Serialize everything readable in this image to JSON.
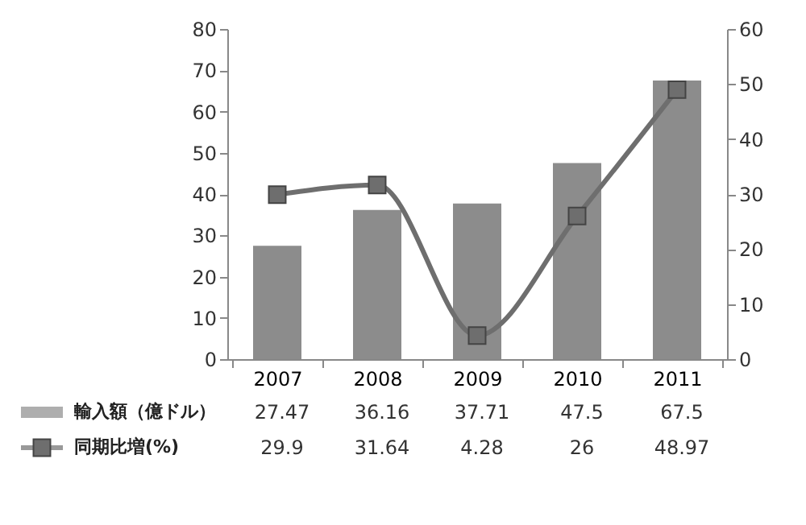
{
  "chart_data": {
    "type": "bar",
    "categories": [
      "2007",
      "2008",
      "2009",
      "2010",
      "2011"
    ],
    "series": [
      {
        "name": "輸入額（億ドル）",
        "color": "#8c8c8c",
        "values": [
          27.47,
          36.16,
          37.71,
          47.5,
          67.5
        ]
      },
      {
        "name": "同期比増(%)",
        "type": "line",
        "axis": "y2",
        "color": "#6e6e6e",
        "values": [
          29.9,
          31.64,
          4.28,
          26,
          48.97
        ]
      }
    ],
    "marker": "square",
    "ylim": [
      0,
      80
    ],
    "yticks": [
      0,
      10,
      20,
      30,
      40,
      50,
      60,
      70,
      80
    ],
    "y2lim": [
      0,
      60
    ],
    "y2ticks": [
      0,
      10,
      20,
      30,
      40,
      50,
      60
    ],
    "data_labels": true,
    "legend": "bottom left",
    "grid": false
  }
}
